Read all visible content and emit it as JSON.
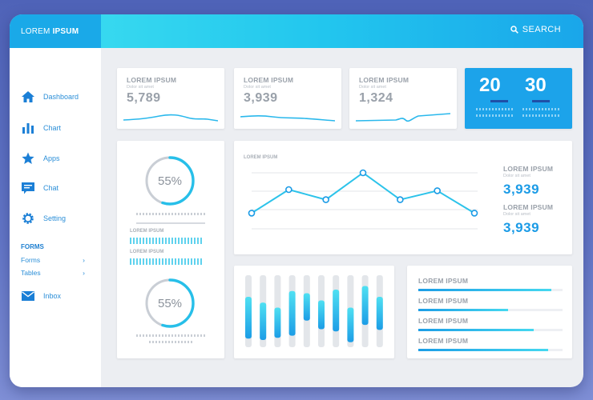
{
  "brand": {
    "light": "LOREM",
    "bold": "IPSUM"
  },
  "search": {
    "label": "SEARCH",
    "icon": "search-icon"
  },
  "sidebar": {
    "items": [
      {
        "label": "Dashboard",
        "icon": "home-icon"
      },
      {
        "label": "Chart",
        "icon": "bar-chart-icon"
      },
      {
        "label": "Apps",
        "icon": "star-icon"
      },
      {
        "label": "Chat",
        "icon": "chat-icon"
      },
      {
        "label": "Setting",
        "icon": "gear-icon"
      }
    ],
    "section_title": "FORMS",
    "sub_items": [
      {
        "label": "Forms",
        "chevron": "›"
      },
      {
        "label": "Tables",
        "chevron": "›"
      }
    ],
    "inbox": {
      "label": "Inbox",
      "icon": "mail-icon"
    }
  },
  "stats": [
    {
      "title": "LOREM IPSUM",
      "subtitle": "Dolor sit amet",
      "value": "5,789"
    },
    {
      "title": "LOREM IPSUM",
      "subtitle": "Dolor sit amet",
      "value": "3,939"
    },
    {
      "title": "LOREM IPSUM",
      "subtitle": "Dolor sit amet",
      "value": "1,324"
    }
  ],
  "highlight": {
    "left": "20",
    "right": "30"
  },
  "gauges": {
    "top": {
      "value": "55%",
      "fraction": 0.55,
      "caption": "Lorem ipsum dolor sit amet consectetur"
    },
    "label_a": "LOREM IPSUM",
    "label_b": "LOREM IPSUM",
    "bottom": {
      "value": "55%",
      "fraction": 0.55,
      "caption": "Lorem ipsum dolor sit amet consectetur"
    }
  },
  "line_panel": {
    "title": "LOREM IPSUM",
    "legend": [
      {
        "title": "LOREM IPSUM",
        "subtitle": "Dolor sit amet",
        "value": "3,939"
      },
      {
        "title": "LOREM IPSUM",
        "subtitle": "Dolor sit amet",
        "value": "3,939"
      }
    ]
  },
  "line_chart": {
    "type": "line",
    "points": [
      0.28,
      0.7,
      0.52,
      1.0,
      0.52,
      0.68,
      0.28
    ],
    "ylim": [
      0,
      1
    ]
  },
  "bar_chart": {
    "type": "bar",
    "values": [
      0.58,
      0.52,
      0.42,
      0.62,
      0.38,
      0.4,
      0.58,
      0.48,
      0.54,
      0.46
    ],
    "offsets": [
      0.3,
      0.38,
      0.45,
      0.22,
      0.25,
      0.35,
      0.2,
      0.45,
      0.15,
      0.3
    ]
  },
  "progress_list": [
    {
      "label": "LOREM IPSUM",
      "fraction": 0.92
    },
    {
      "label": "LOREM IPSUM",
      "fraction": 0.62
    },
    {
      "label": "LOREM IPSUM",
      "fraction": 0.8
    },
    {
      "label": "LOREM IPSUM",
      "fraction": 0.9
    }
  ],
  "colors": {
    "accent": "#1b9be6",
    "cyan": "#38d4ee",
    "highlight_bg": "#1ca3ea"
  }
}
